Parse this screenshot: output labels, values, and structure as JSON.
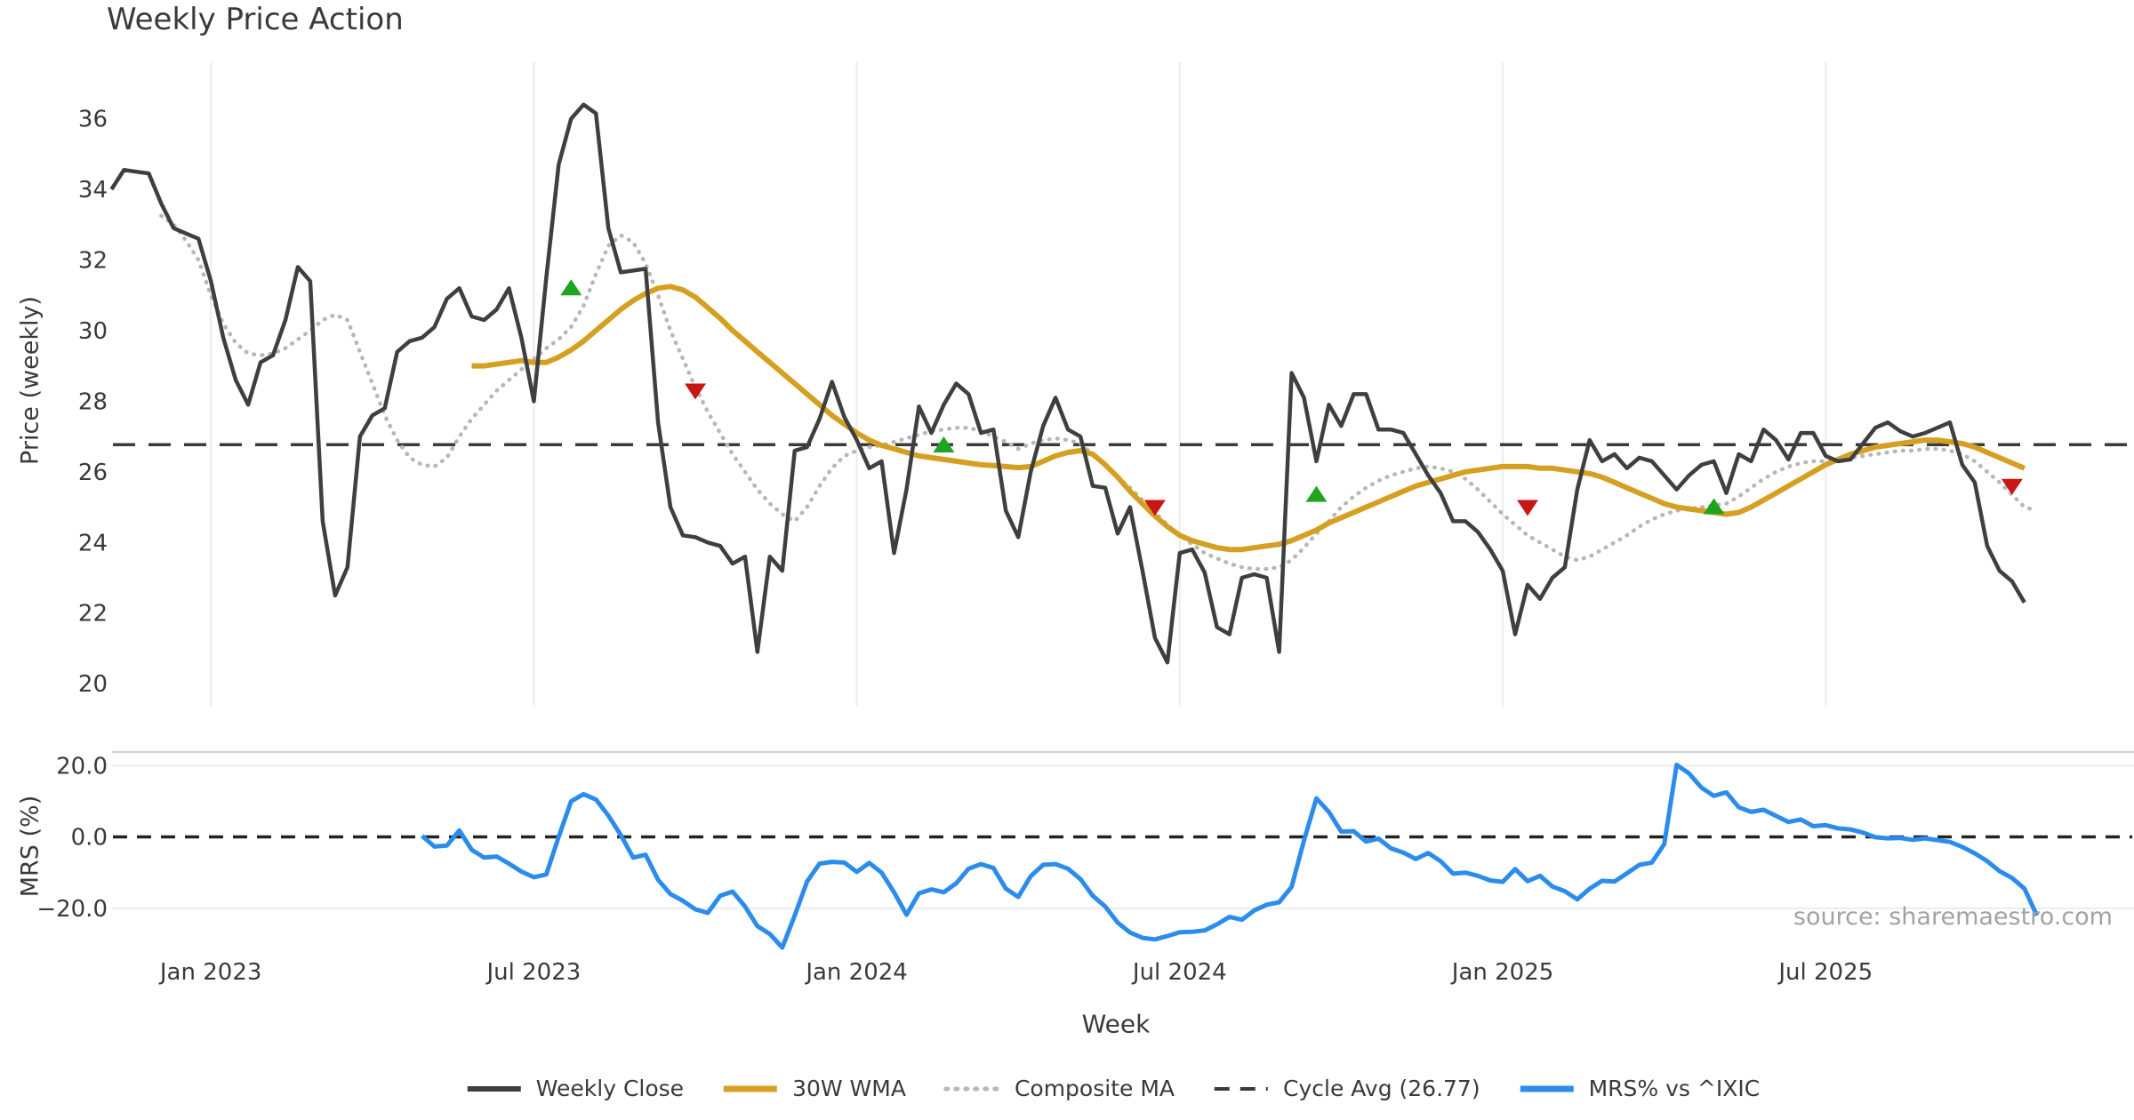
{
  "title": "Weekly Price Action",
  "source_note": "source: sharemaestro.com",
  "axes": {
    "price_label": "Price (weekly)",
    "mrs_label": "MRS (%)",
    "x_label": "Week"
  },
  "colors": {
    "close": "#3f3f3f",
    "wma": "#d5a021",
    "composite": "#b7b7b7",
    "cycle": "#3a3a3a",
    "mrs": "#2b8ceb",
    "buy": "#1ea41e",
    "sell": "#c81515",
    "grid": "#ebebf2",
    "spine": "#d4d4d4",
    "text": "#3a3a3a",
    "source": "#a2a2a2"
  },
  "legend": {
    "items": [
      {
        "label": "Weekly Close",
        "color_key": "close",
        "line": "solid",
        "weight": 6
      },
      {
        "label": "30W WMA",
        "color_key": "wma",
        "line": "solid",
        "weight": 7
      },
      {
        "label": "Composite MA",
        "color_key": "composite",
        "line": "dotted",
        "weight": 5
      },
      {
        "label": "Cycle Avg (26.77)",
        "color_key": "cycle",
        "line": "dashed",
        "weight": 4
      },
      {
        "label": "MRS% vs ^IXIC",
        "color_key": "mrs",
        "line": "solid",
        "weight": 7
      }
    ]
  },
  "chart_data": {
    "type": "line",
    "x_unit": "week_index",
    "xlabel": "Week",
    "xticks": [
      {
        "label": "Jan 2023",
        "week": 8
      },
      {
        "label": "Jul 2023",
        "week": 34
      },
      {
        "label": "Jan 2024",
        "week": 60
      },
      {
        "label": "Jul 2024",
        "week": 86
      },
      {
        "label": "Jan 2025",
        "week": 112
      },
      {
        "label": "Jul 2025",
        "week": 138
      }
    ],
    "panels": [
      {
        "name": "price",
        "ylabel": "Price (weekly)",
        "ylim": [
          19.35,
          37.6
        ],
        "yticks": [
          {
            "label": "36",
            "v": 36
          },
          {
            "label": "34",
            "v": 34
          },
          {
            "label": "32",
            "v": 32
          },
          {
            "label": "30",
            "v": 30
          },
          {
            "label": "28",
            "v": 28
          },
          {
            "label": "26",
            "v": 26
          },
          {
            "label": "24",
            "v": 24
          },
          {
            "label": "22",
            "v": 22
          },
          {
            "label": "20",
            "v": 20
          }
        ],
        "cycle_avg": 26.77,
        "series": [
          {
            "name": "Weekly Close",
            "key": "close",
            "start": 0,
            "values": [
              34.0,
              34.55,
              34.5,
              34.45,
              33.6,
              32.9,
              32.75,
              32.6,
              31.4,
              29.8,
              28.6,
              27.9,
              29.1,
              29.3,
              30.3,
              31.8,
              31.4,
              24.6,
              22.5,
              23.3,
              27.0,
              27.6,
              27.8,
              29.4,
              29.7,
              29.8,
              30.1,
              30.9,
              31.2,
              30.4,
              30.3,
              30.6,
              31.2,
              29.8,
              28.0,
              31.5,
              34.7,
              36.0,
              36.4,
              36.15,
              32.9,
              31.65,
              31.7,
              31.75,
              27.4,
              25.0,
              24.2,
              24.15,
              24.0,
              23.9,
              23.4,
              23.6,
              20.9,
              23.6,
              23.2,
              26.6,
              26.7,
              27.5,
              28.55,
              27.55,
              26.9,
              26.1,
              26.3,
              23.7,
              25.5,
              27.85,
              27.1,
              27.9,
              28.5,
              28.2,
              27.1,
              27.2,
              24.9,
              24.15,
              26.0,
              27.3,
              28.1,
              27.2,
              27.0,
              25.6,
              25.55,
              24.25,
              25.0,
              23.2,
              21.3,
              20.6,
              23.7,
              23.8,
              23.15,
              21.6,
              21.4,
              23.0,
              23.1,
              23.0,
              20.9,
              28.8,
              28.1,
              26.3,
              27.9,
              27.3,
              28.2,
              28.2,
              27.2,
              27.2,
              27.1,
              26.5,
              25.9,
              25.4,
              24.6,
              24.6,
              24.3,
              23.8,
              23.2,
              21.4,
              22.8,
              22.4,
              23.0,
              23.3,
              25.5,
              26.9,
              26.3,
              26.5,
              26.1,
              26.4,
              26.3,
              25.9,
              25.5,
              25.9,
              26.2,
              26.3,
              25.4,
              26.5,
              26.3,
              27.2,
              26.9,
              26.35,
              27.1,
              27.1,
              26.45,
              26.3,
              26.35,
              26.8,
              27.25,
              27.4,
              27.15,
              27.0,
              27.1,
              27.25,
              27.4,
              26.2,
              25.7,
              23.9,
              23.2,
              22.9,
              22.3
            ]
          },
          {
            "name": "30W WMA",
            "key": "wma",
            "start": 29,
            "values": [
              29.0,
              29.0,
              29.05,
              29.1,
              29.15,
              29.1,
              29.1,
              29.25,
              29.45,
              29.7,
              30.0,
              30.3,
              30.6,
              30.85,
              31.05,
              31.2,
              31.25,
              31.15,
              30.95,
              30.65,
              30.35,
              30.0,
              29.7,
              29.4,
              29.1,
              28.8,
              28.5,
              28.2,
              27.9,
              27.6,
              27.35,
              27.1,
              26.9,
              26.75,
              26.65,
              26.55,
              26.45,
              26.4,
              26.35,
              26.3,
              26.25,
              26.2,
              26.18,
              26.15,
              26.12,
              26.15,
              26.3,
              26.45,
              26.55,
              26.6,
              26.5,
              26.2,
              25.85,
              25.45,
              25.1,
              24.75,
              24.45,
              24.2,
              24.05,
              23.95,
              23.85,
              23.8,
              23.8,
              23.85,
              23.9,
              23.95,
              24.05,
              24.2,
              24.35,
              24.55,
              24.7,
              24.85,
              25.0,
              25.15,
              25.3,
              25.45,
              25.6,
              25.7,
              25.8,
              25.9,
              26.0,
              26.05,
              26.1,
              26.15,
              26.15,
              26.15,
              26.1,
              26.1,
              26.05,
              26.0,
              25.95,
              25.85,
              25.7,
              25.55,
              25.4,
              25.25,
              25.1,
              25.0,
              24.95,
              24.9,
              24.85,
              24.8,
              24.85,
              25.0,
              25.2,
              25.4,
              25.6,
              25.8,
              26.0,
              26.2,
              26.35,
              26.5,
              26.6,
              26.7,
              26.75,
              26.8,
              26.85,
              26.9,
              26.9,
              26.85,
              26.8,
              26.7,
              26.55,
              26.4,
              26.25,
              26.1
            ]
          },
          {
            "name": "Composite MA",
            "key": "composite",
            "start": 4,
            "values": [
              33.25,
              33.0,
              32.55,
              32.0,
              31.0,
              30.2,
              29.65,
              29.35,
              29.3,
              29.35,
              29.5,
              29.75,
              30.0,
              30.3,
              30.45,
              30.3,
              29.4,
              28.5,
              27.6,
              26.9,
              26.4,
              26.2,
              26.15,
              26.4,
              27.0,
              27.5,
              27.9,
              28.3,
              28.6,
              28.9,
              29.2,
              29.5,
              29.75,
              30.1,
              30.7,
              31.6,
              32.4,
              32.7,
              32.5,
              31.9,
              31.0,
              30.0,
              29.2,
              28.4,
              27.7,
              27.1,
              26.5,
              26.0,
              25.5,
              25.1,
              24.8,
              24.6,
              25.0,
              25.6,
              26.1,
              26.45,
              26.6,
              26.7,
              26.75,
              26.85,
              26.95,
              27.05,
              27.15,
              27.2,
              27.25,
              27.25,
              27.15,
              27.0,
              26.85,
              26.65,
              26.8,
              26.9,
              26.95,
              26.9,
              26.8,
              26.5,
              26.2,
              25.85,
              25.55,
              25.2,
              24.85,
              24.5,
              24.2,
              23.95,
              23.7,
              23.55,
              23.4,
              23.3,
              23.25,
              23.25,
              23.3,
              23.5,
              23.85,
              24.25,
              24.6,
              25.0,
              25.3,
              25.55,
              25.75,
              25.9,
              26.0,
              26.1,
              26.15,
              26.1,
              26.0,
              25.8,
              25.5,
              25.15,
              24.8,
              24.5,
              24.2,
              24.0,
              23.8,
              23.6,
              23.5,
              23.6,
              23.8,
              24.0,
              24.2,
              24.45,
              24.65,
              24.8,
              24.9,
              24.95,
              25.0,
              25.05,
              25.1,
              25.3,
              25.55,
              25.8,
              26.0,
              26.15,
              26.25,
              26.3,
              26.3,
              26.35,
              26.4,
              26.45,
              26.5,
              26.55,
              26.6,
              26.6,
              26.65,
              26.65,
              26.6,
              26.5,
              26.3,
              26.0,
              25.7,
              25.35,
              25.0,
              24.9
            ]
          }
        ],
        "markers": [
          {
            "week": 37,
            "price": 31.2,
            "type": "buy"
          },
          {
            "week": 47,
            "price": 28.3,
            "type": "sell"
          },
          {
            "week": 67,
            "price": 26.75,
            "type": "buy"
          },
          {
            "week": 84,
            "price": 25.0,
            "type": "sell"
          },
          {
            "week": 97,
            "price": 25.35,
            "type": "buy"
          },
          {
            "week": 114,
            "price": 25.0,
            "type": "sell"
          },
          {
            "week": 129,
            "price": 25.0,
            "type": "buy"
          },
          {
            "week": 153,
            "price": 25.6,
            "type": "sell"
          }
        ]
      },
      {
        "name": "mrs",
        "ylabel": "MRS (%)",
        "ylim": [
          -32.0,
          23.8
        ],
        "yticks": [
          {
            "label": "20.0",
            "v": 20
          },
          {
            "label": "0.0",
            "v": 0
          },
          {
            "label": "−20.0",
            "v": -20
          }
        ],
        "zero_line": 0,
        "grid_vals": [
          20,
          -20
        ],
        "series": [
          {
            "name": "MRS% vs ^IXIC",
            "key": "mrs",
            "start": 25,
            "values": [
              0.3,
              -2.7,
              -2.4,
              1.8,
              -3.6,
              -5.8,
              -5.5,
              -7.5,
              -9.7,
              -11.3,
              -10.5,
              0.0,
              10.0,
              12.0,
              10.5,
              6.0,
              0.5,
              -5.8,
              -5.0,
              -12.0,
              -16.0,
              -17.9,
              -20.3,
              -21.3,
              -16.5,
              -15.3,
              -19.5,
              -25.0,
              -27.2,
              -31.0,
              -22.0,
              -12.5,
              -7.5,
              -7.0,
              -7.2,
              -9.8,
              -7.3,
              -10.0,
              -15.5,
              -21.8,
              -15.8,
              -14.7,
              -15.5,
              -13.0,
              -8.9,
              -7.6,
              -8.7,
              -14.5,
              -16.8,
              -11.0,
              -7.8,
              -7.6,
              -8.9,
              -11.8,
              -16.5,
              -19.5,
              -24.0,
              -26.8,
              -28.3,
              -28.7,
              -27.8,
              -26.7,
              -26.6,
              -26.2,
              -24.5,
              -22.4,
              -23.2,
              -20.6,
              -19.0,
              -18.3,
              -14.0,
              -1.0,
              10.8,
              7.0,
              1.5,
              1.6,
              -1.3,
              -0.5,
              -3.2,
              -4.4,
              -6.2,
              -4.5,
              -6.8,
              -10.3,
              -10.0,
              -10.9,
              -12.2,
              -12.6,
              -9.0,
              -12.4,
              -10.9,
              -13.9,
              -15.2,
              -17.5,
              -14.5,
              -12.3,
              -12.5,
              -10.2,
              -7.8,
              -7.2,
              -2.0,
              20.2,
              17.8,
              13.8,
              11.5,
              12.5,
              8.3,
              7.0,
              7.6,
              5.9,
              4.2,
              4.9,
              3.0,
              3.3,
              2.4,
              2.1,
              1.2,
              -0.1,
              -0.4,
              -0.3,
              -0.8,
              -0.4,
              -0.9,
              -1.4,
              -2.8,
              -4.6,
              -6.8,
              -9.6,
              -11.5,
              -14.5,
              -22.0
            ]
          }
        ]
      }
    ]
  }
}
